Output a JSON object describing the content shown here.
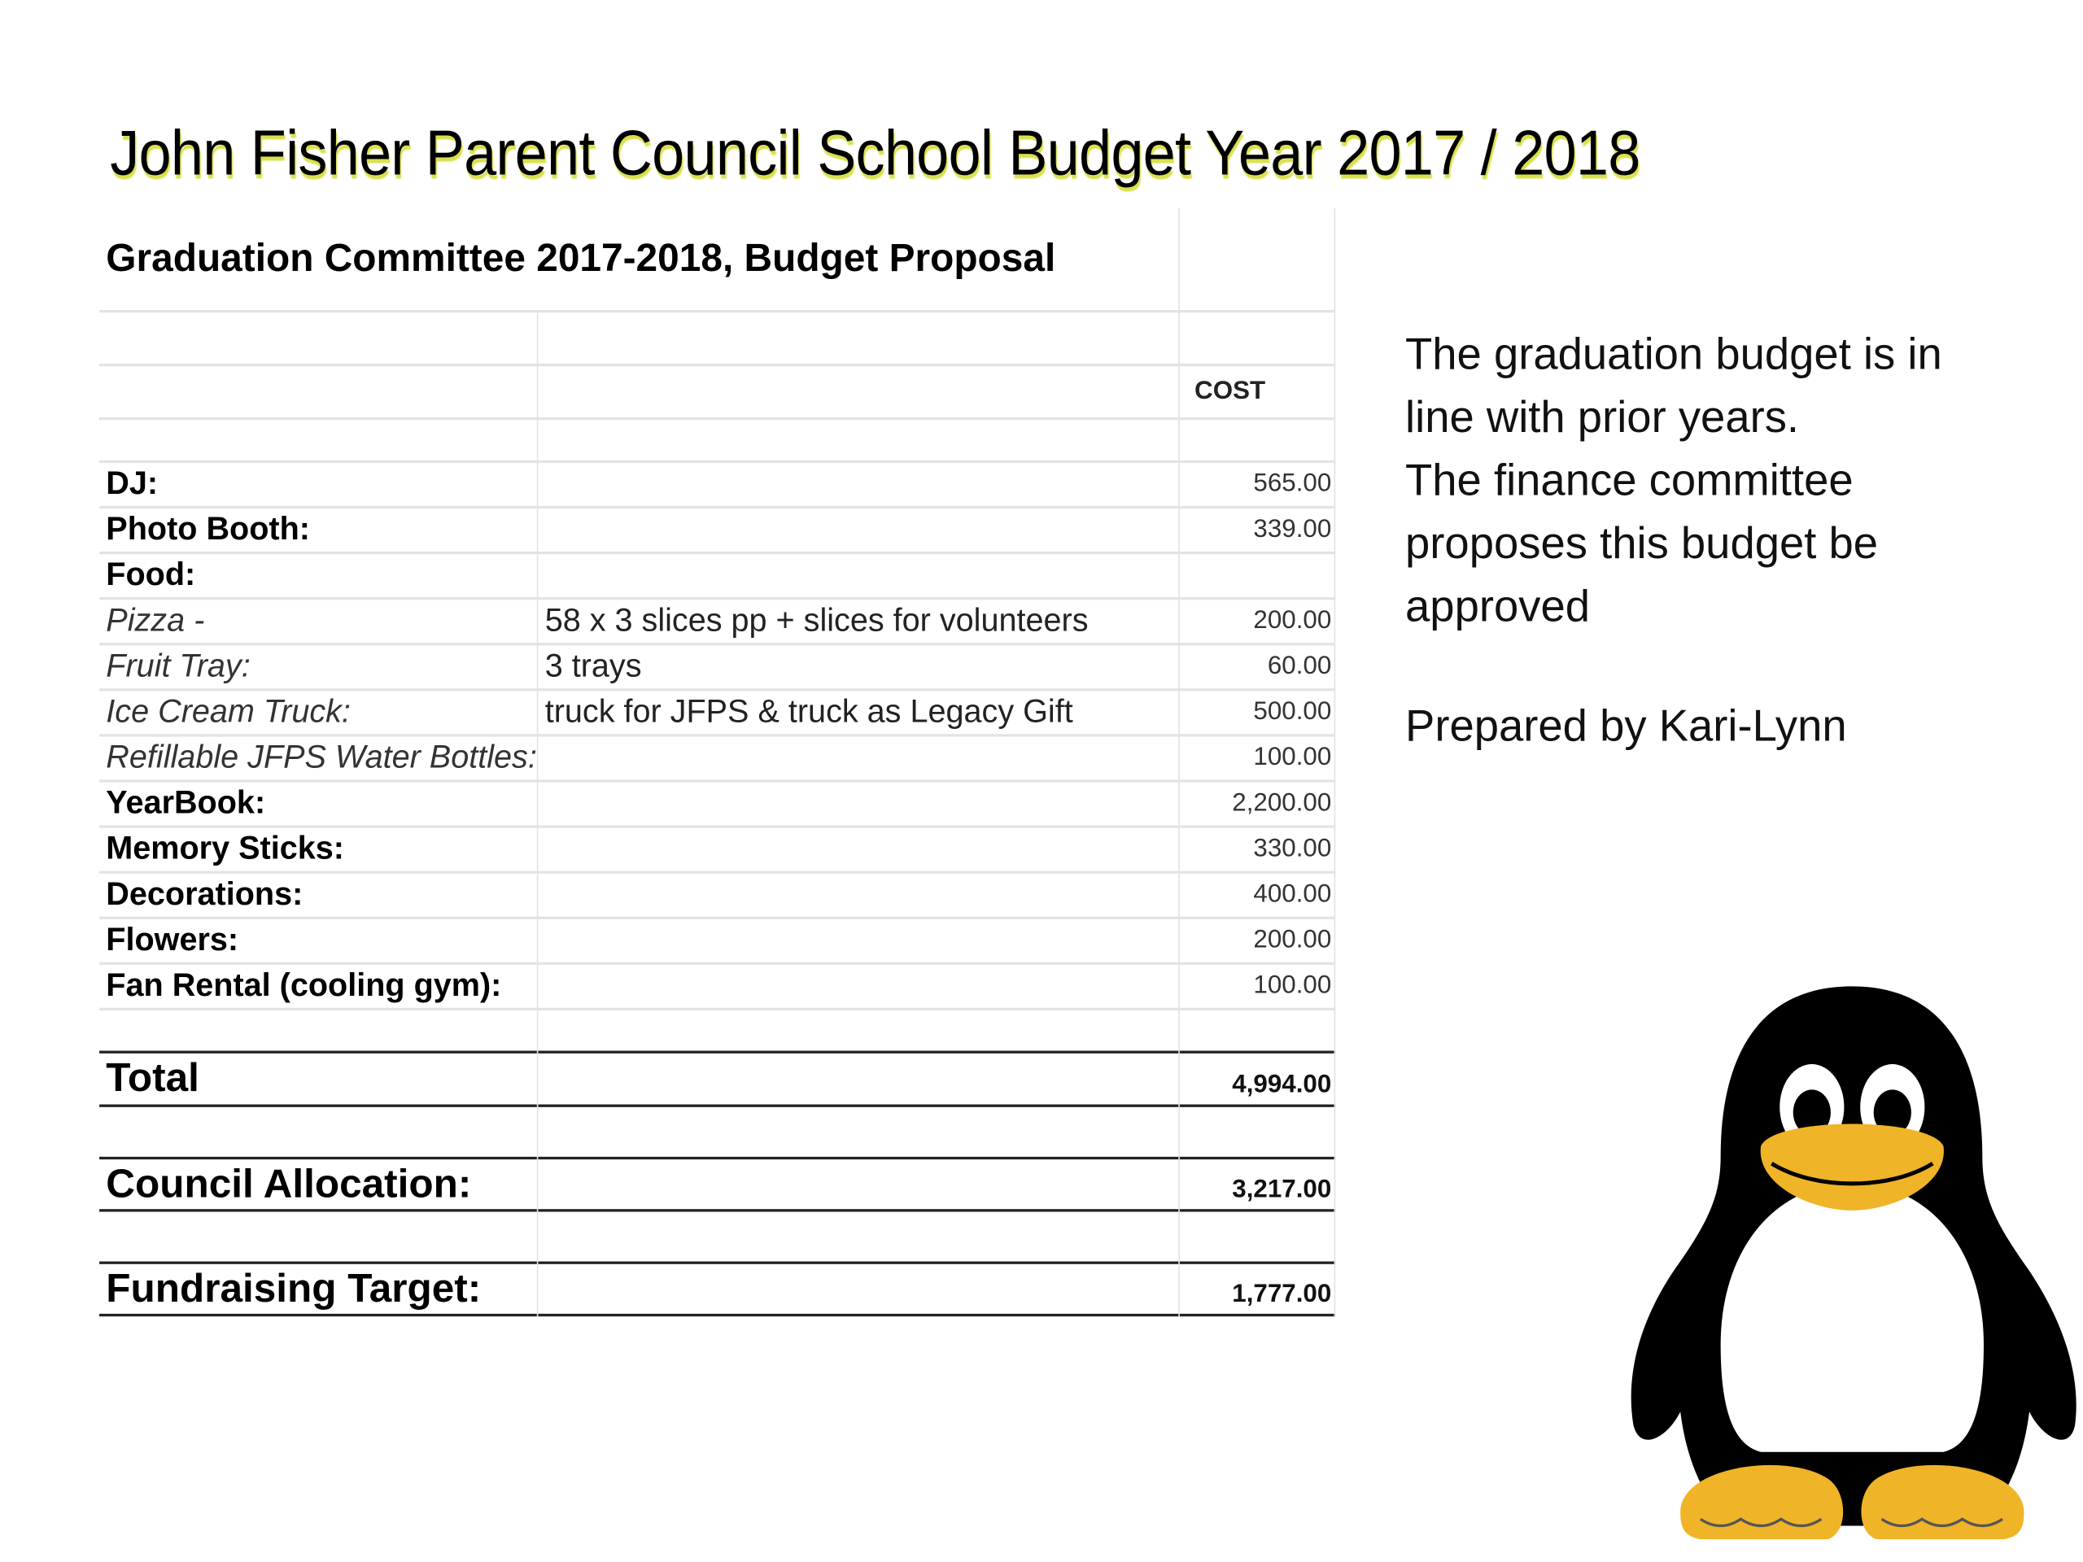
{
  "title": "John Fisher Parent Council School Budget Year 2017 / 2018",
  "table": {
    "heading": "Graduation Committee 2017-2018, Budget Proposal",
    "cost_header": "COST",
    "items": [
      {
        "label": "DJ:",
        "style": "bold",
        "description": "",
        "cost": "565.00"
      },
      {
        "label": "Photo Booth:",
        "style": "bold",
        "description": "",
        "cost": "339.00"
      },
      {
        "label": "Food:",
        "style": "bold",
        "description": "",
        "cost": ""
      },
      {
        "label": "Pizza -",
        "style": "italic",
        "description": "58 x 3 slices pp + slices for volunteers",
        "cost": "200.00"
      },
      {
        "label": "Fruit Tray:",
        "style": "italic",
        "description": "3 trays",
        "cost": "60.00"
      },
      {
        "label": "Ice Cream Truck:",
        "style": "italic",
        "description": "truck for JFPS & truck as Legacy Gift",
        "cost": "500.00"
      },
      {
        "label": "Refillable JFPS Water Bottles:",
        "style": "italic",
        "description": "",
        "cost": "100.00"
      },
      {
        "label": "YearBook:",
        "style": "bold",
        "description": "",
        "cost": "2,200.00"
      },
      {
        "label": "Memory Sticks:",
        "style": "bold",
        "description": "",
        "cost": "330.00"
      },
      {
        "label": "Decorations:",
        "style": "bold",
        "description": "",
        "cost": "400.00"
      },
      {
        "label": "Flowers:",
        "style": "bold",
        "description": "",
        "cost": "200.00"
      },
      {
        "label": "Fan Rental (cooling gym):",
        "style": "bold",
        "description": "",
        "cost": "100.00"
      }
    ],
    "total": {
      "label": "Total",
      "cost": "4,994.00"
    },
    "council_allocation": {
      "label": "Council Allocation:",
      "cost": "3,217.00"
    },
    "fundraising_target": {
      "label": "Fundraising Target:",
      "cost": "1,777.00"
    }
  },
  "note": {
    "lines": [
      "The graduation budget is in",
      "line with prior years.",
      "The finance committee",
      "proposes this budget be",
      "approved"
    ],
    "prepared_by": "Prepared by Kari-Lynn"
  },
  "image": {
    "icon": "penguin-icon",
    "colors": {
      "body": "#000000",
      "belly": "#ffffff",
      "beak_feet": "#f0b429"
    }
  }
}
